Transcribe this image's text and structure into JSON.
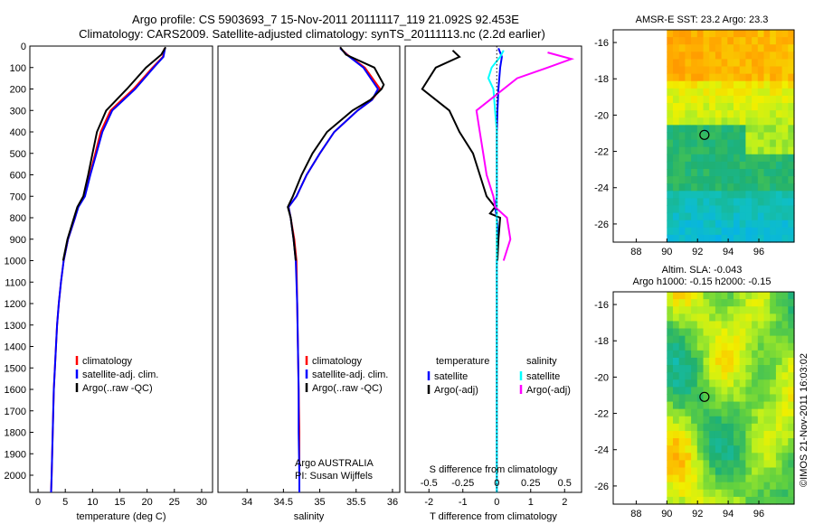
{
  "title_line1": "Argo profile: CS 5903693_7 15-Nov-2011 20111117_119 21.092S 92.453E",
  "title_line2": "Climatology: CARS2009. Satellite-adjusted climatology: synTS_20111113.nc (2.2d earlier)",
  "footer_stamp": "©IMOS 21-Nov-2011 16:03:02",
  "colors": {
    "climatology": "#ff0000",
    "satellite": "#0000ff",
    "argo": "#000000",
    "sat_sal": "#00ffff",
    "argo_sal": "#ff00ff"
  },
  "chart_data": [
    {
      "type": "line",
      "id": "temperature",
      "xlabel": "temperature (deg C)",
      "ylim": [
        2080,
        0
      ],
      "xlim": [
        -1.5,
        32
      ],
      "xticks": [
        0,
        5,
        10,
        15,
        20,
        25,
        30
      ],
      "yticks": [
        0,
        100,
        200,
        300,
        400,
        500,
        600,
        700,
        800,
        900,
        1000,
        1100,
        1200,
        1300,
        1400,
        1500,
        1600,
        1700,
        1800,
        1900,
        2000
      ],
      "legend": [
        "climatology",
        "satellite-adj. clim.",
        "Argo(..raw -QC)"
      ],
      "series": [
        {
          "name": "climatology",
          "color": "#ff0000",
          "points": [
            [
              23.2,
              10
            ],
            [
              22.9,
              50
            ],
            [
              21,
              100
            ],
            [
              17.5,
              200
            ],
            [
              13.3,
              300
            ],
            [
              11.5,
              400
            ],
            [
              10.5,
              500
            ],
            [
              9.5,
              600
            ],
            [
              8.5,
              700
            ],
            [
              7.3,
              750
            ],
            [
              6.8,
              800
            ],
            [
              5.5,
              900
            ],
            [
              4.7,
              1000
            ],
            [
              4.2,
              1100
            ],
            [
              3.8,
              1200
            ],
            [
              3.5,
              1300
            ],
            [
              3.3,
              1400
            ],
            [
              3.1,
              1500
            ],
            [
              2.9,
              1600
            ],
            [
              2.8,
              1700
            ],
            [
              2.7,
              1800
            ],
            [
              2.6,
              1900
            ],
            [
              2.5,
              2000
            ],
            [
              2.4,
              2080
            ]
          ]
        },
        {
          "name": "satellite-adj. clim.",
          "color": "#0000ff",
          "points": [
            [
              23.3,
              10
            ],
            [
              23,
              50
            ],
            [
              21.2,
              100
            ],
            [
              17.8,
              200
            ],
            [
              13.6,
              300
            ],
            [
              11.8,
              400
            ],
            [
              10.7,
              500
            ],
            [
              9.6,
              600
            ],
            [
              8.6,
              700
            ],
            [
              7.4,
              750
            ],
            [
              6.8,
              800
            ],
            [
              5.5,
              900
            ],
            [
              4.7,
              1000
            ],
            [
              4.2,
              1100
            ],
            [
              3.8,
              1200
            ],
            [
              3.5,
              1300
            ],
            [
              3.3,
              1400
            ],
            [
              3.1,
              1500
            ],
            [
              2.9,
              1600
            ],
            [
              2.8,
              1700
            ],
            [
              2.7,
              1800
            ],
            [
              2.6,
              1900
            ],
            [
              2.5,
              2000
            ],
            [
              2.4,
              2080
            ]
          ]
        },
        {
          "name": "Argo(..raw -QC)",
          "color": "#000000",
          "points": [
            [
              23.4,
              5
            ],
            [
              22.6,
              40
            ],
            [
              19.8,
              100
            ],
            [
              16.3,
              200
            ],
            [
              12.5,
              300
            ],
            [
              10.8,
              400
            ],
            [
              10,
              500
            ],
            [
              9.2,
              600
            ],
            [
              8.3,
              700
            ],
            [
              7.2,
              750
            ],
            [
              6.6,
              800
            ],
            [
              5.4,
              900
            ],
            [
              4.6,
              1000
            ]
          ]
        }
      ]
    },
    {
      "type": "line",
      "id": "salinity",
      "xlabel": "salinity",
      "ylim": [
        2080,
        0
      ],
      "xlim": [
        33.6,
        36.1
      ],
      "xticks": [
        34,
        34.5,
        35,
        35.5,
        36
      ],
      "xticklabels": [
        "34",
        "34.5",
        "35",
        "35.5",
        "36"
      ],
      "legend": [
        "climatology",
        "satellite-adj. clim.",
        "Argo(..raw -QC)"
      ],
      "annotations": [
        "Argo AUSTRALIA",
        "PI: Susan Wijffels"
      ],
      "series": [
        {
          "name": "climatology",
          "color": "#ff0000",
          "points": [
            [
              35.28,
              10
            ],
            [
              35.38,
              40
            ],
            [
              35.62,
              100
            ],
            [
              35.83,
              200
            ],
            [
              35.72,
              250
            ],
            [
              35.52,
              300
            ],
            [
              35.2,
              400
            ],
            [
              35.0,
              500
            ],
            [
              34.82,
              600
            ],
            [
              34.68,
              700
            ],
            [
              34.57,
              750
            ],
            [
              34.6,
              800
            ],
            [
              34.65,
              900
            ],
            [
              34.68,
              1000
            ],
            [
              34.69,
              1200
            ],
            [
              34.7,
              1400
            ],
            [
              34.71,
              1600
            ],
            [
              34.72,
              1800
            ],
            [
              34.72,
              2000
            ],
            [
              34.72,
              2080
            ]
          ]
        },
        {
          "name": "satellite-adj. clim.",
          "color": "#0000ff",
          "points": [
            [
              35.28,
              10
            ],
            [
              35.37,
              40
            ],
            [
              35.6,
              100
            ],
            [
              35.8,
              200
            ],
            [
              35.72,
              250
            ],
            [
              35.52,
              300
            ],
            [
              35.2,
              400
            ],
            [
              35.0,
              500
            ],
            [
              34.82,
              600
            ],
            [
              34.68,
              700
            ],
            [
              34.57,
              750
            ],
            [
              34.6,
              800
            ],
            [
              34.64,
              900
            ],
            [
              34.67,
              1000
            ],
            [
              34.69,
              1200
            ],
            [
              34.7,
              1400
            ],
            [
              34.71,
              1600
            ],
            [
              34.71,
              1800
            ],
            [
              34.72,
              2000
            ],
            [
              34.72,
              2080
            ]
          ]
        },
        {
          "name": "Argo(..raw -QC)",
          "color": "#000000",
          "points": [
            [
              35.28,
              5
            ],
            [
              35.36,
              40
            ],
            [
              35.75,
              100
            ],
            [
              35.88,
              180
            ],
            [
              35.85,
              200
            ],
            [
              35.7,
              250
            ],
            [
              35.45,
              300
            ],
            [
              35.1,
              400
            ],
            [
              34.9,
              500
            ],
            [
              34.75,
              600
            ],
            [
              34.63,
              700
            ],
            [
              34.56,
              750
            ],
            [
              34.6,
              800
            ],
            [
              34.64,
              900
            ],
            [
              34.67,
              1000
            ]
          ]
        }
      ]
    },
    {
      "type": "line",
      "id": "differences",
      "xlabel": "T difference from climatology",
      "xlabel_top": "S difference from climatology",
      "ylim": [
        2080,
        0
      ],
      "xlim": [
        -2.7,
        2.5
      ],
      "xticks": [
        -2,
        -1,
        0,
        1,
        2
      ],
      "xticklabels": [
        "-2",
        "-1",
        "0",
        "1",
        "2"
      ],
      "s_ticks": [
        -0.5,
        -0.25,
        0,
        0.25,
        0.5
      ],
      "s_ticklabels": [
        "-0.5",
        "-0.25",
        "0",
        "0.25",
        "0.5"
      ],
      "legend_left_header": "temperature",
      "legend_left": [
        "satellite",
        "Argo(-adj)"
      ],
      "legend_right_header": "salinity",
      "legend_right": [
        "satellite",
        "Argo(-adj)"
      ],
      "series": [
        {
          "name": "satellite",
          "color": "#0000ff",
          "points": [
            [
              0.05,
              10
            ],
            [
              0.15,
              50
            ],
            [
              0.1,
              100
            ],
            [
              0.05,
              200
            ],
            [
              0.02,
              300
            ],
            [
              0,
              400
            ],
            [
              0,
              500
            ],
            [
              0,
              600
            ],
            [
              0,
              700
            ],
            [
              -0.05,
              750
            ],
            [
              0,
              800
            ],
            [
              0.05,
              900
            ],
            [
              0,
              1000
            ],
            [
              0,
              1200
            ],
            [
              0,
              1400
            ],
            [
              0,
              1600
            ],
            [
              0,
              1800
            ],
            [
              0,
              2000
            ],
            [
              0,
              2080
            ]
          ]
        },
        {
          "name": "Argo(-adj)",
          "color": "#000000",
          "points": [
            [
              -1.3,
              20
            ],
            [
              -1.1,
              50
            ],
            [
              -1.8,
              100
            ],
            [
              -2.2,
              200
            ],
            [
              -1.4,
              300
            ],
            [
              -1.1,
              400
            ],
            [
              -0.7,
              500
            ],
            [
              -0.5,
              600
            ],
            [
              -0.3,
              700
            ],
            [
              -0.05,
              750
            ],
            [
              -0.2,
              780
            ],
            [
              0.1,
              800
            ],
            [
              0.05,
              900
            ],
            [
              0.02,
              1000
            ]
          ]
        },
        {
          "name": "salinity satellite",
          "color": "#00ffff",
          "points": [
            [
              0.2,
              20
            ],
            [
              0.1,
              50
            ],
            [
              -0.15,
              100
            ],
            [
              -0.25,
              150
            ],
            [
              -0.1,
              200
            ],
            [
              -0.05,
              300
            ],
            [
              0,
              400
            ],
            [
              0,
              600
            ],
            [
              0,
              800
            ],
            [
              0,
              1000
            ],
            [
              0,
              1200
            ],
            [
              0,
              1500
            ],
            [
              0,
              1800
            ],
            [
              0,
              2080
            ]
          ]
        },
        {
          "name": "salinity Argo(-adj)",
          "color": "#ff00ff",
          "points": [
            [
              1.5,
              30
            ],
            [
              2.2,
              60
            ],
            [
              1.5,
              100
            ],
            [
              0.6,
              150
            ],
            [
              -0.6,
              300
            ],
            [
              -0.5,
              400
            ],
            [
              -0.4,
              500
            ],
            [
              -0.3,
              600
            ],
            [
              -0.1,
              700
            ],
            [
              -0.05,
              750
            ],
            [
              0.3,
              800
            ],
            [
              0.4,
              900
            ],
            [
              0.2,
              1000
            ]
          ]
        }
      ]
    },
    {
      "type": "heatmap",
      "id": "sst_map",
      "title": "AMSR-E SST: 23.2 Argo: 23.3",
      "xticks": [
        88,
        90,
        92,
        94,
        96
      ],
      "yticks": [
        -16,
        -18,
        -20,
        -22,
        -24,
        -26
      ],
      "xlim": [
        86.5,
        98.3
      ],
      "ylim": [
        -27,
        -15.3
      ],
      "data_xlim": [
        90,
        98.3
      ],
      "marker": {
        "lon": 92.45,
        "lat": -21.09
      }
    },
    {
      "type": "heatmap",
      "id": "sla_map",
      "title": "Altim. SLA: -0.043",
      "subtitle": "Argo h1000: -0.15 h2000: -0.15",
      "xticks": [
        88,
        90,
        92,
        94,
        96
      ],
      "yticks": [
        -16,
        -18,
        -20,
        -22,
        -24,
        -26
      ],
      "xlim": [
        86.5,
        98.3
      ],
      "ylim": [
        -27,
        -15.3
      ],
      "data_xlim": [
        90,
        98.3
      ],
      "marker": {
        "lon": 92.45,
        "lat": -21.09
      }
    }
  ]
}
